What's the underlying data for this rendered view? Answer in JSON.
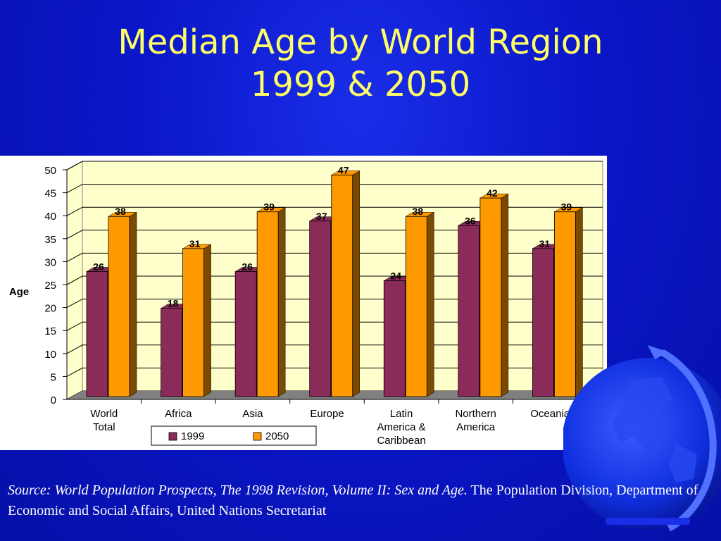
{
  "slide": {
    "title_line1": "Median Age by World Region",
    "title_line2": "1999 & 2050",
    "source_italic": "Source: World Population Prospects, The 1998 Revision, Volume II: Sex and Age.",
    "source_plain": " The Population Division, Department of Economic and Social Affairs, United Nations Secretariat"
  },
  "chart_data": {
    "type": "bar",
    "ylabel": "Age",
    "xlabel": "",
    "ylim": [
      0,
      50
    ],
    "yticks": [
      0,
      5,
      10,
      15,
      20,
      25,
      30,
      35,
      40,
      45,
      50
    ],
    "grid": true,
    "legend": "bottom",
    "categories": [
      [
        "World",
        "Total"
      ],
      [
        "Africa"
      ],
      [
        "Asia"
      ],
      [
        "Europe"
      ],
      [
        "Latin",
        "America &",
        "Caribbean"
      ],
      [
        "Northern",
        "America"
      ],
      [
        "Oceania"
      ]
    ],
    "series": [
      {
        "name": "1999",
        "color": "#8b2b5a",
        "side_color": "#5a1a3a",
        "values": [
          26,
          18,
          26,
          37,
          24,
          36,
          31
        ]
      },
      {
        "name": "2050",
        "color": "#ff9900",
        "side_color": "#7a4a00",
        "values": [
          38,
          31,
          39,
          47,
          38,
          42,
          39
        ]
      }
    ],
    "colors": {
      "plot_background": "#ffffcc",
      "floor": "#808080",
      "grid": "#000000"
    }
  }
}
